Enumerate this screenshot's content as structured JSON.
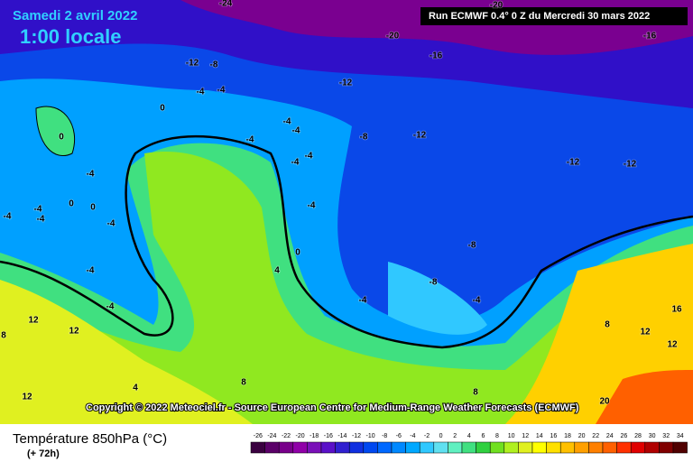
{
  "header": {
    "date": "Samedi 2 avril 2022",
    "time": "1:00 locale",
    "run": "Run ECMWF 0.4° 0 Z du Mercredi 30 mars 2022"
  },
  "copyright": "Copyright © 2022 Meteociel.fr - Source European Centre for Medium-Range Weather Forecasts (ECMWF)",
  "legend": {
    "title": "Température 850hPa (°C)",
    "subtitle": "(+ 72h)",
    "ticks": [
      -26,
      -24,
      -22,
      -20,
      -18,
      -16,
      -14,
      -12,
      -10,
      -8,
      -6,
      -4,
      -2,
      0,
      2,
      4,
      6,
      8,
      10,
      12,
      14,
      16,
      18,
      20,
      22,
      24,
      26,
      28,
      30,
      32,
      34
    ],
    "colors": [
      "#3a0040",
      "#5a0068",
      "#78008a",
      "#9000a8",
      "#7a10b8",
      "#5a10c8",
      "#3020d0",
      "#1030e0",
      "#0048f0",
      "#0068ff",
      "#0088ff",
      "#00a8ff",
      "#30c8ff",
      "#60e0f0",
      "#60f0c0",
      "#40e080",
      "#30d040",
      "#70e020",
      "#b0f020",
      "#e0f020",
      "#ffff00",
      "#ffe000",
      "#ffc000",
      "#ffa000",
      "#ff8000",
      "#ff6000",
      "#ff3000",
      "#e00000",
      "#b00000",
      "#800000",
      "#500000"
    ]
  },
  "map_labels": [
    -24,
    -20,
    -20,
    -16,
    -16,
    -12,
    -8,
    -12,
    -4,
    -4,
    0,
    -4,
    -4,
    -8,
    -12,
    -4,
    -4,
    -4,
    -12,
    -12,
    0,
    -4,
    0,
    0,
    -4,
    -4,
    -4,
    -4,
    -4,
    0,
    4,
    -4,
    -8,
    -8,
    -4,
    -4,
    -4,
    12,
    12,
    8,
    16,
    12,
    12,
    8,
    12,
    8,
    4,
    8,
    20
  ]
}
